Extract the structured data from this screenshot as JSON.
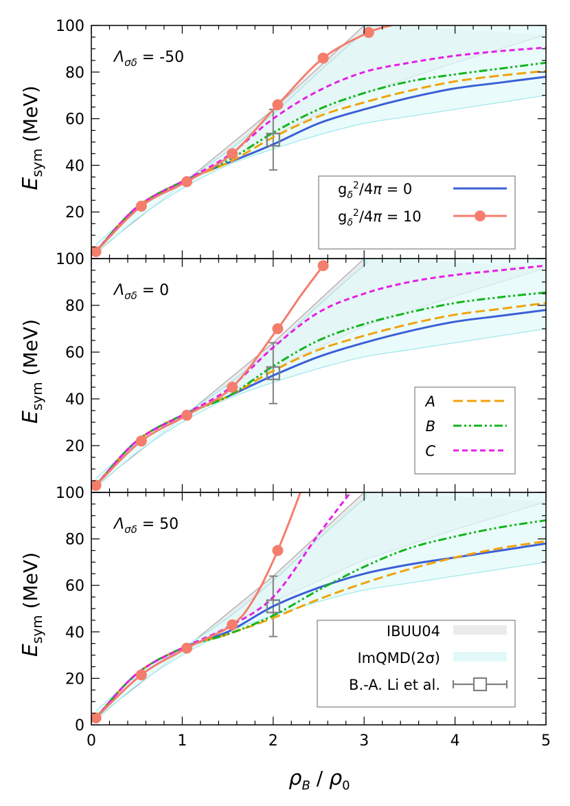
{
  "chart_data": {
    "type": "line",
    "xlabel": "ρB / ρ0",
    "xlim": [
      0,
      5
    ],
    "xticks": [
      "0",
      "1",
      "2",
      "3",
      "4",
      "5"
    ],
    "ylim": [
      0,
      100
    ],
    "yticks": [
      "0",
      "20",
      "40",
      "60",
      "80",
      "100"
    ],
    "ylabel": "Esym (MeV)",
    "bands": [
      {
        "name": "IBUU04",
        "color": "#ebebeb",
        "edge": "#a6a6a6",
        "upper": [
          [
            0.05,
            3
          ],
          [
            1.0,
            32
          ],
          [
            2.0,
            64
          ],
          [
            3.0,
            100
          ],
          [
            3.3,
            100
          ]
        ],
        "lower": [
          [
            0.05,
            3
          ],
          [
            1.0,
            32
          ],
          [
            2.0,
            53
          ],
          [
            3.0,
            71
          ],
          [
            4.0,
            84
          ],
          [
            5.0,
            96
          ]
        ]
      },
      {
        "name": "ImQMD(2σ)",
        "color": "#e3f9f9",
        "edge": "#9ee7ec",
        "upper": [
          [
            0.05,
            6
          ],
          [
            0.5,
            21
          ],
          [
            1.0,
            33
          ],
          [
            1.5,
            46
          ],
          [
            2.0,
            62
          ],
          [
            2.5,
            80
          ],
          [
            3.0,
            97
          ],
          [
            3.15,
            100
          ],
          [
            5.0,
            100
          ]
        ],
        "lower": [
          [
            0.05,
            2
          ],
          [
            0.5,
            17
          ],
          [
            1.0,
            30
          ],
          [
            1.5,
            40
          ],
          [
            2.0,
            47
          ],
          [
            2.5,
            53
          ],
          [
            3.0,
            58
          ],
          [
            3.5,
            61
          ],
          [
            4.0,
            64
          ],
          [
            4.5,
            67
          ],
          [
            5.0,
            70
          ]
        ]
      }
    ],
    "data_point": {
      "name": "B.-A. Li et al.",
      "x": 2.0,
      "y": 51,
      "yerr": [
        38,
        64
      ]
    },
    "legend_labels": {
      "g0": "g_δ²/4π =   0",
      "g10": "g_δ²/4π = 10",
      "A": "A",
      "B": "B",
      "C": "C",
      "ibuu": "IBUU04",
      "imqmd": "ImQMD(2σ)",
      "li": "B.-A. Li et al."
    },
    "panels": [
      {
        "label": "Λσδ = -50",
        "series": [
          {
            "name": "g_δ²/4π = 0",
            "color": "#3b5fd6",
            "dash": "",
            "x": [
              0.05,
              0.5,
              1.0,
              1.5,
              2.0,
              2.5,
              3.0,
              3.5,
              4.0,
              4.5,
              5.0
            ],
            "y": [
              3,
              22,
              33,
              41,
              49,
              58,
              64,
              69,
              73,
              75.5,
              78
            ]
          },
          {
            "name": "A",
            "color": "#f0a30a",
            "dash": "14 6",
            "x": [
              0.05,
              0.5,
              1.0,
              1.5,
              2.0,
              2.5,
              3.0,
              3.5,
              4.0,
              4.5,
              5.0
            ],
            "y": [
              3,
              22,
              33,
              41,
              52,
              61,
              67,
              72,
              76,
              78.5,
              80.5
            ]
          },
          {
            "name": "B",
            "color": "#11b51a",
            "dash": "12 4 3 4 3 4",
            "x": [
              0.05,
              0.5,
              1.0,
              1.5,
              2.0,
              2.5,
              3.0,
              3.5,
              4.0,
              4.5,
              5.0
            ],
            "y": [
              3,
              22,
              33,
              42,
              54,
              64,
              71,
              76,
              79,
              81.5,
              84
            ]
          },
          {
            "name": "C",
            "color": "#e61ee6",
            "dash": "8 5",
            "x": [
              0.05,
              0.5,
              1.0,
              1.5,
              2.0,
              2.5,
              3.0,
              3.5,
              4.0,
              4.5,
              5.0
            ],
            "y": [
              3,
              22,
              33,
              44,
              60,
              72,
              80,
              84,
              87,
              89,
              90.5
            ]
          },
          {
            "name": "g_δ²/4π = 10",
            "color": "#f47d6c",
            "dash": "",
            "x": [
              0.05,
              0.55,
              1.05,
              1.55,
              2.05,
              2.55,
              3.05,
              3.3
            ],
            "y": [
              3,
              22.5,
              33,
              45,
              66,
              86,
              97,
              100
            ],
            "markers": [
              [
                0.05,
                3
              ],
              [
                0.55,
                22.5
              ],
              [
                1.05,
                33
              ],
              [
                1.55,
                45
              ],
              [
                2.05,
                66
              ],
              [
                2.55,
                86
              ],
              [
                3.05,
                97
              ]
            ]
          }
        ]
      },
      {
        "label": "Λσδ = 0",
        "series": [
          {
            "name": "g_δ²/4π = 0",
            "color": "#3b5fd6",
            "dash": "",
            "x": [
              0.05,
              0.5,
              1.0,
              1.5,
              2.0,
              2.5,
              3.0,
              3.5,
              4.0,
              4.5,
              5.0
            ],
            "y": [
              3,
              22,
              33,
              41,
              50,
              58,
              64,
              69,
              73,
              75.5,
              78
            ]
          },
          {
            "name": "A",
            "color": "#f0a30a",
            "dash": "14 6",
            "x": [
              0.05,
              0.5,
              1.0,
              1.5,
              2.0,
              2.5,
              3.0,
              3.5,
              4.0,
              4.5,
              5.0
            ],
            "y": [
              3,
              22,
              33,
              41,
              52,
              61,
              67,
              72,
              76,
              78.5,
              81
            ]
          },
          {
            "name": "B",
            "color": "#11b51a",
            "dash": "12 4 3 4 3 4",
            "x": [
              0.05,
              0.5,
              1.0,
              1.5,
              2.0,
              2.5,
              3.0,
              3.5,
              4.0,
              4.5,
              5.0
            ],
            "y": [
              3,
              22,
              33,
              41,
              54,
              65,
              72,
              77,
              81,
              83.5,
              85.5
            ]
          },
          {
            "name": "C",
            "color": "#e61ee6",
            "dash": "8 5",
            "x": [
              0.05,
              0.5,
              1.0,
              1.5,
              2.0,
              2.5,
              3.0,
              3.5,
              4.0,
              4.5,
              5.0
            ],
            "y": [
              3,
              22,
              33,
              44,
              62,
              77,
              85,
              90,
              93,
              95,
              97
            ]
          },
          {
            "name": "g_δ²/4π = 10",
            "color": "#f47d6c",
            "dash": "",
            "x": [
              0.05,
              0.55,
              1.05,
              1.55,
              2.05,
              2.3,
              2.55
            ],
            "y": [
              3,
              22,
              33,
              45,
              70,
              84,
              97
            ],
            "markers": [
              [
                0.05,
                3
              ],
              [
                0.55,
                22
              ],
              [
                1.05,
                33
              ],
              [
                1.55,
                45
              ],
              [
                2.05,
                70
              ],
              [
                2.55,
                97
              ]
            ]
          }
        ]
      },
      {
        "label": "Λσδ = 50",
        "series": [
          {
            "name": "g_δ²/4π = 0",
            "color": "#3b5fd6",
            "dash": "",
            "x": [
              0.05,
              0.5,
              1.0,
              1.5,
              2.0,
              2.5,
              3.0,
              3.5,
              4.0,
              4.5,
              5.0
            ],
            "y": [
              3,
              22,
              33,
              40,
              51,
              59,
              65,
              69,
              72,
              75,
              78
            ]
          },
          {
            "name": "A",
            "color": "#f0a30a",
            "dash": "14 6",
            "x": [
              0.05,
              0.5,
              1.0,
              1.5,
              2.0,
              2.5,
              3.0,
              3.5,
              4.0,
              4.5,
              5.0
            ],
            "y": [
              3,
              22,
              33,
              39,
              46,
              54,
              61,
              67,
              72,
              76,
              79
            ]
          },
          {
            "name": "B",
            "color": "#11b51a",
            "dash": "12 4 3 4 3 4",
            "x": [
              0.05,
              0.5,
              1.0,
              1.5,
              2.0,
              2.5,
              3.0,
              3.5,
              4.0,
              4.5,
              5.0
            ],
            "y": [
              3,
              22,
              33,
              39,
              47,
              58,
              68,
              76,
              81,
              85,
              88
            ]
          },
          {
            "name": "C",
            "color": "#e61ee6",
            "dash": "8 5",
            "x": [
              0.05,
              0.5,
              1.0,
              1.5,
              2.0,
              2.5,
              2.85
            ],
            "y": [
              3,
              22,
              33,
              42,
              55,
              82,
              100
            ]
          },
          {
            "name": "g_δ²/4π = 10",
            "color": "#f47d6c",
            "dash": "",
            "x": [
              0.05,
              0.55,
              1.05,
              1.55,
              1.8,
              2.05,
              2.3
            ],
            "y": [
              3,
              21.5,
              33,
              43,
              55,
              75,
              100
            ],
            "markers": [
              [
                0.05,
                3
              ],
              [
                0.55,
                21.5
              ],
              [
                1.05,
                33
              ],
              [
                1.55,
                43
              ],
              [
                2.05,
                75
              ]
            ]
          }
        ]
      }
    ]
  }
}
